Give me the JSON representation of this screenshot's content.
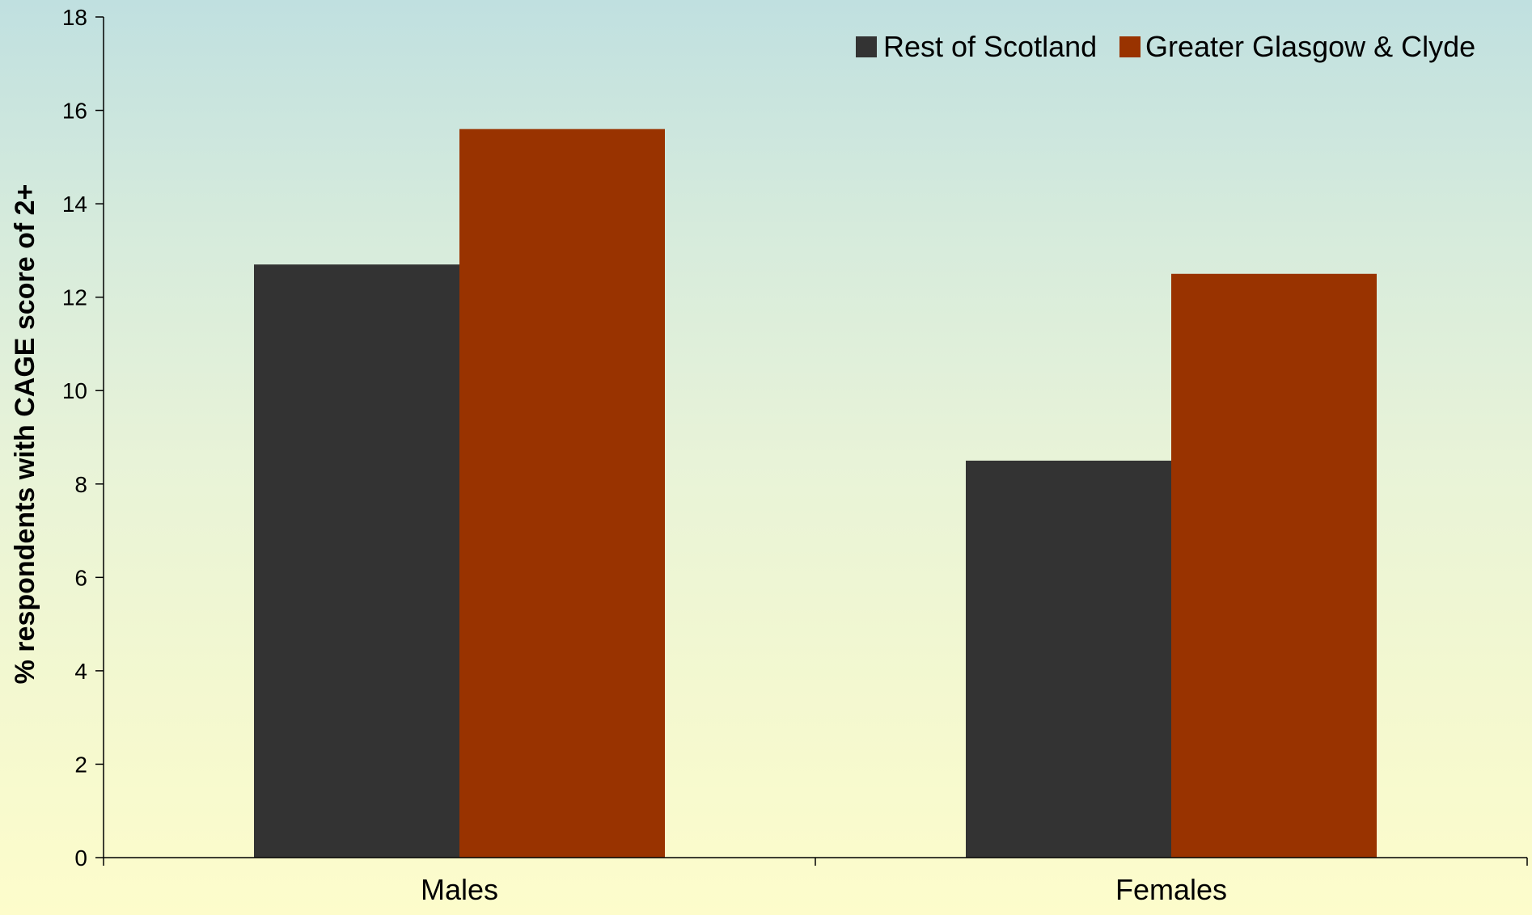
{
  "chart_data": {
    "type": "bar",
    "categories": [
      "Males",
      "Females"
    ],
    "series": [
      {
        "name": "Rest of Scotland",
        "values": [
          12.7,
          8.5
        ],
        "color": "#333333"
      },
      {
        "name": "Greater Glasgow & Clyde",
        "values": [
          15.6,
          12.5
        ],
        "color": "#993300"
      }
    ],
    "ylabel": "% respondents with CAGE score of 2+",
    "xlabel": "",
    "ylim": [
      0,
      18
    ],
    "yticks": [
      0,
      2,
      4,
      6,
      8,
      10,
      12,
      14,
      16,
      18
    ],
    "grid": false,
    "legend_position": "top-right"
  }
}
